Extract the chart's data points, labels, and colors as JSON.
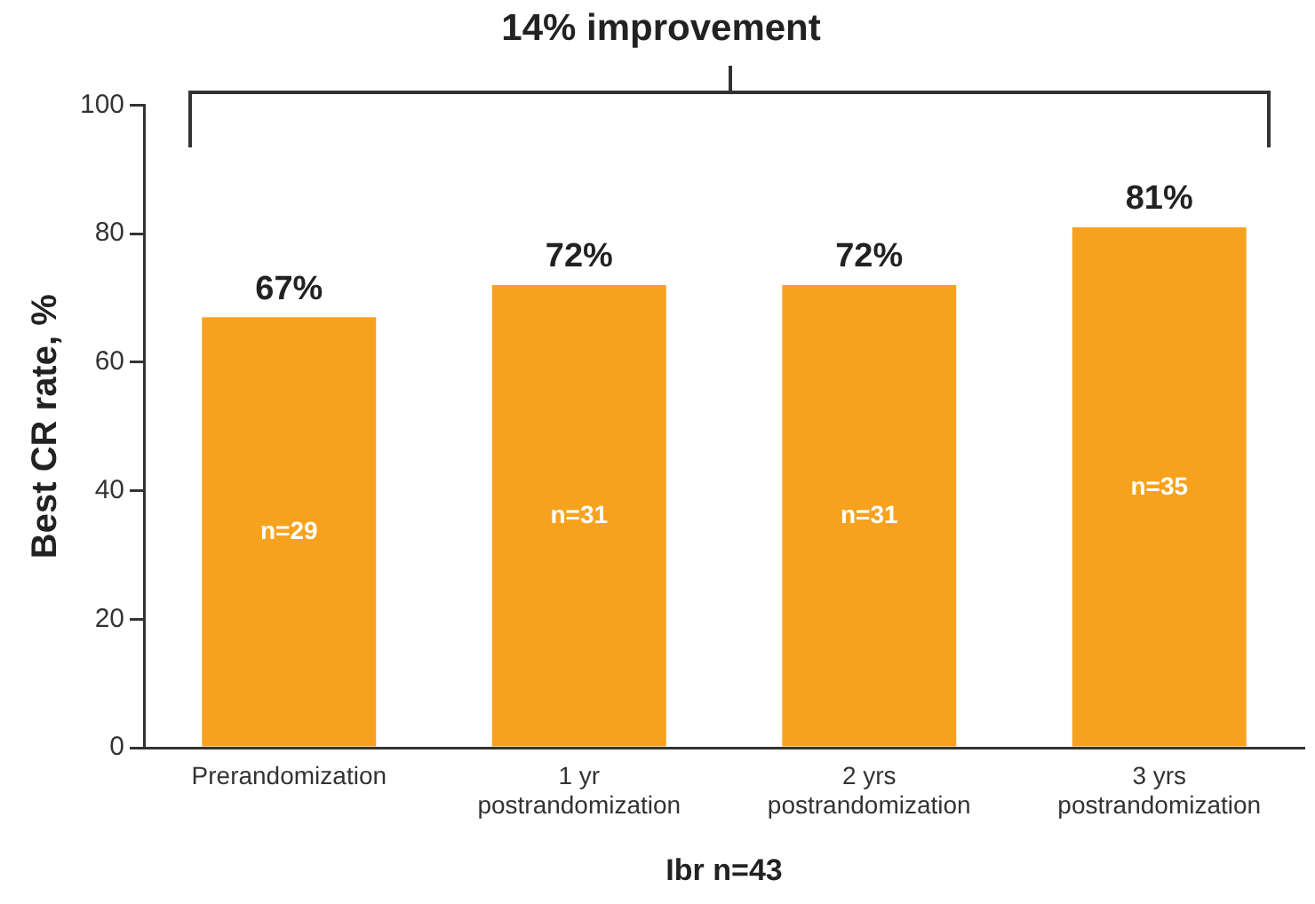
{
  "chart_data": {
    "type": "bar",
    "title": "14% improvement",
    "categories": [
      "Prerandomization",
      "1 yr\npostrandomization",
      "2 yrs\npostrandomization",
      "3 yrs\npostrandomization"
    ],
    "values": [
      67,
      72,
      72,
      81
    ],
    "value_labels": [
      "67%",
      "72%",
      "72%",
      "81%"
    ],
    "color": "#f7a21e",
    "xlabel": "Ibr n=43",
    "ylabel": "Best CR rate, %",
    "ylim": [
      0,
      100
    ],
    "yticks": [
      0,
      20,
      40,
      60,
      80,
      100
    ],
    "annotations": [
      "n=29",
      "n=31",
      "n=31",
      "n=35"
    ],
    "grid": false,
    "legend": false
  }
}
